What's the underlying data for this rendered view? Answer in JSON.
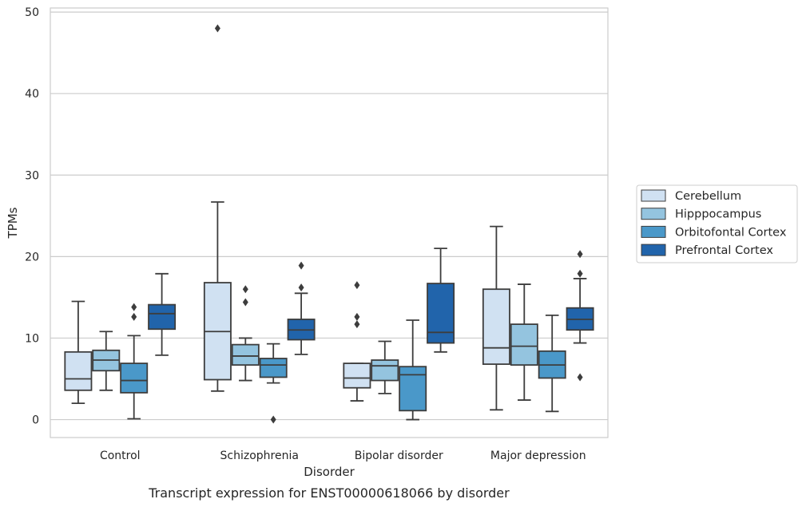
{
  "caption": "Transcript expression for ENST00000618066 by disorder",
  "chart_data": {
    "type": "box",
    "xlabel": "Disorder",
    "ylabel": "TPMs",
    "ylim": [
      -2.2,
      50.5
    ],
    "yticks": [
      0,
      10,
      20,
      30,
      40,
      50
    ],
    "grid": "horizontal",
    "legend_position": "right",
    "categories": [
      "Control",
      "Schizophrenia",
      "Bipolar disorder",
      "Major depression"
    ],
    "series": [
      {
        "name": "Cerebellum",
        "color": "#d0e1f2",
        "boxes": [
          {
            "whisker_low": 2.0,
            "q1": 3.6,
            "median": 5.0,
            "q3": 8.3,
            "whisker_high": 14.5,
            "outliers": []
          },
          {
            "whisker_low": 3.5,
            "q1": 4.9,
            "median": 10.8,
            "q3": 16.8,
            "whisker_high": 26.7,
            "outliers": [
              48.0
            ]
          },
          {
            "whisker_low": 2.3,
            "q1": 3.9,
            "median": 5.1,
            "q3": 6.9,
            "whisker_high": 6.9,
            "outliers": [
              11.7,
              12.6,
              16.5
            ]
          },
          {
            "whisker_low": 1.2,
            "q1": 6.8,
            "median": 8.8,
            "q3": 16.0,
            "whisker_high": 23.7,
            "outliers": []
          }
        ]
      },
      {
        "name": "Hipppocampus",
        "color": "#94c4df",
        "boxes": [
          {
            "whisker_low": 3.6,
            "q1": 6.0,
            "median": 7.3,
            "q3": 8.5,
            "whisker_high": 10.8,
            "outliers": []
          },
          {
            "whisker_low": 4.8,
            "q1": 6.7,
            "median": 7.8,
            "q3": 9.2,
            "whisker_high": 10.0,
            "outliers": [
              14.4,
              16.0
            ]
          },
          {
            "whisker_low": 3.2,
            "q1": 4.8,
            "median": 6.6,
            "q3": 7.3,
            "whisker_high": 9.6,
            "outliers": []
          },
          {
            "whisker_low": 2.4,
            "q1": 6.7,
            "median": 9.0,
            "q3": 11.7,
            "whisker_high": 16.6,
            "outliers": []
          }
        ]
      },
      {
        "name": "Orbitofontal Cortex",
        "color": "#4a98c9",
        "boxes": [
          {
            "whisker_low": 0.1,
            "q1": 3.3,
            "median": 4.8,
            "q3": 6.9,
            "whisker_high": 10.3,
            "outliers": [
              12.6,
              13.8
            ]
          },
          {
            "whisker_low": 4.5,
            "q1": 5.2,
            "median": 6.7,
            "q3": 7.5,
            "whisker_high": 9.3,
            "outliers": [
              0.0
            ]
          },
          {
            "whisker_low": 0.0,
            "q1": 1.1,
            "median": 5.5,
            "q3": 6.5,
            "whisker_high": 12.2,
            "outliers": []
          },
          {
            "whisker_low": 1.0,
            "q1": 5.1,
            "median": 6.7,
            "q3": 8.4,
            "whisker_high": 12.8,
            "outliers": []
          }
        ]
      },
      {
        "name": "Prefrontal Cortex",
        "color": "#2164ab",
        "boxes": [
          {
            "whisker_low": 7.9,
            "q1": 11.1,
            "median": 13.0,
            "q3": 14.1,
            "whisker_high": 17.9,
            "outliers": []
          },
          {
            "whisker_low": 8.0,
            "q1": 9.8,
            "median": 11.0,
            "q3": 12.3,
            "whisker_high": 15.5,
            "outliers": [
              16.2,
              18.9
            ]
          },
          {
            "whisker_low": 8.3,
            "q1": 9.4,
            "median": 10.7,
            "q3": 16.7,
            "whisker_high": 21.0,
            "outliers": []
          },
          {
            "whisker_low": 9.4,
            "q1": 11.0,
            "median": 12.3,
            "q3": 13.7,
            "whisker_high": 17.3,
            "outliers": [
              5.2,
              17.9,
              20.3
            ]
          }
        ]
      }
    ]
  }
}
